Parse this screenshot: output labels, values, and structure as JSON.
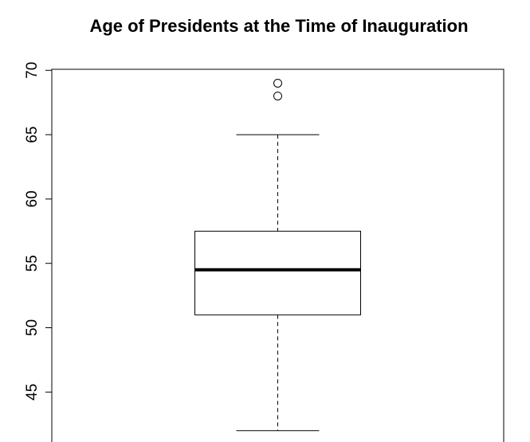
{
  "chart_data": {
    "type": "box",
    "title": "Age of Presidents at the Time of Inauguration",
    "ylim": [
      40.92,
      70.08
    ],
    "yticks": [
      45,
      50,
      55,
      60,
      65,
      70
    ],
    "boxes": [
      {
        "min": 42,
        "q1": 51,
        "median": 54.5,
        "q3": 57.5,
        "max": 65,
        "outliers": [
          68,
          69
        ]
      }
    ]
  }
}
